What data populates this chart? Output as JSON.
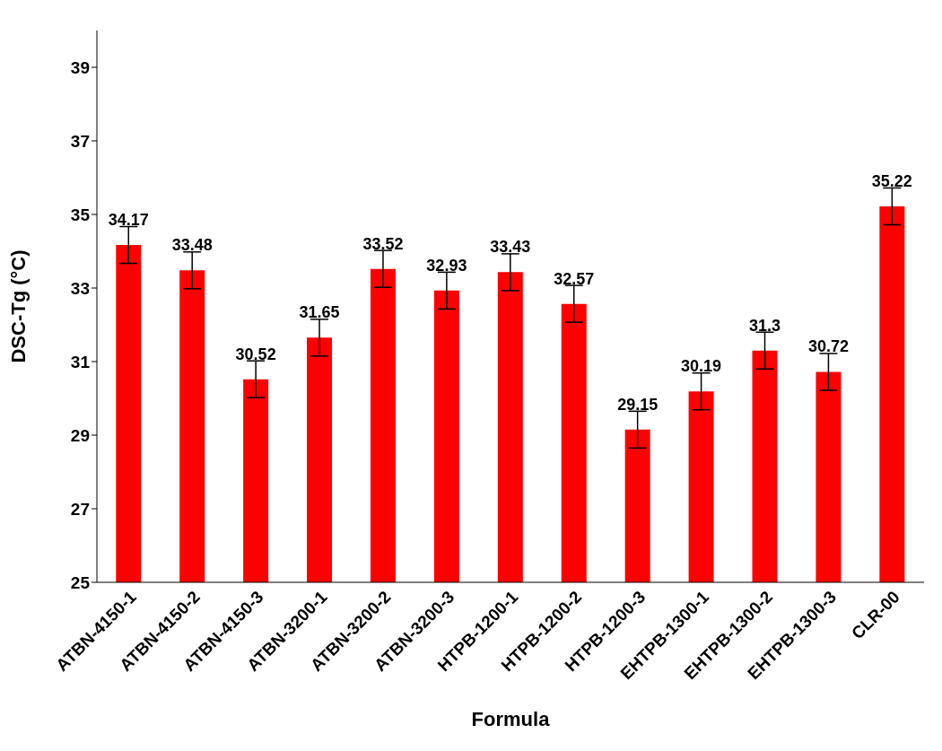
{
  "chart_data": {
    "type": "bar",
    "xlabel": "Formula",
    "ylabel": "DSC-Tg (°C)",
    "categories": [
      "ATBN-4150-1",
      "ATBN-4150-2",
      "ATBN-4150-3",
      "ATBN-3200-1",
      "ATBN-3200-2",
      "ATBN-3200-3",
      "HTPB-1200-1",
      "HTPB-1200-2",
      "HTPB-1200-3",
      "EHTPB-1300-1",
      "EHTPB-1300-2",
      "EHTPB-1300-3",
      "CLR-00"
    ],
    "values": [
      34.17,
      33.48,
      30.52,
      31.65,
      33.52,
      32.93,
      33.43,
      32.57,
      29.15,
      30.19,
      31.3,
      30.72,
      35.22
    ],
    "errors": [
      0.5,
      0.5,
      0.5,
      0.5,
      0.5,
      0.5,
      0.5,
      0.5,
      0.5,
      0.5,
      0.5,
      0.5,
      0.5
    ],
    "color": "#ff0000",
    "ylim": [
      25,
      40
    ],
    "yticks": [
      25,
      27,
      29,
      31,
      33,
      35,
      37,
      39
    ],
    "grid": false,
    "legend": false,
    "data_labels": true
  }
}
